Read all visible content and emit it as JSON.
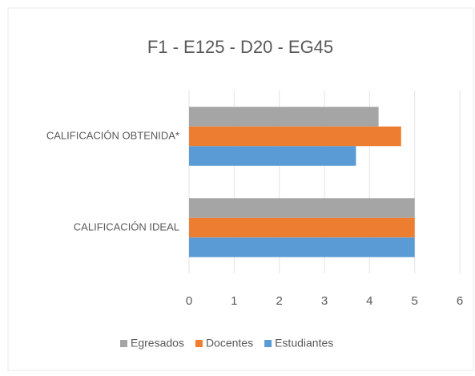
{
  "chart_data": {
    "type": "hbar",
    "title": "F1 - E125 - D20 - EG45",
    "categories": [
      "CALIFICACIÓN OBTENIDA*",
      "CALIFICACIÓN IDEAL"
    ],
    "series": [
      {
        "name": "Egresados",
        "color": "#a5a5a5",
        "values": [
          4.2,
          5
        ]
      },
      {
        "name": "Docentes",
        "color": "#ed7d31",
        "values": [
          4.7,
          5
        ]
      },
      {
        "name": "Estudiantes",
        "color": "#5b9bd5",
        "values": [
          3.7,
          5
        ]
      }
    ],
    "xlim": [
      0,
      6
    ],
    "xticks": [
      0,
      1,
      2,
      3,
      4,
      5,
      6
    ],
    "grid": true,
    "legend": "bottom"
  }
}
